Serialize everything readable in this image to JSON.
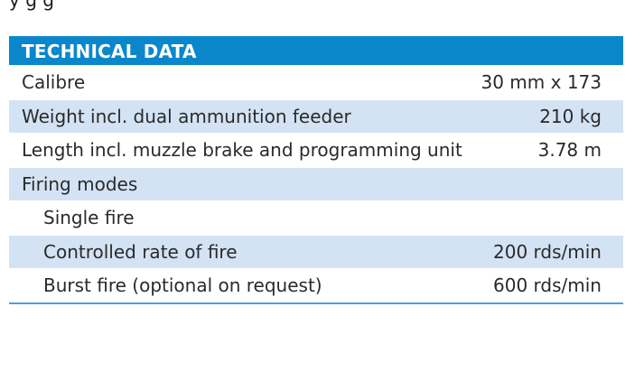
{
  "top_text": "y                   g    g",
  "table": {
    "header": "TECHNICAL DATA",
    "rows": [
      {
        "label": "Calibre",
        "value": "30 mm x 173"
      },
      {
        "label": "Weight incl. dual ammunition feeder",
        "value": "210 kg"
      },
      {
        "label": "Length incl. muzzle brake and programming unit",
        "value": "3.78 m"
      },
      {
        "label": "Firing modes",
        "value": ""
      },
      {
        "label": "Single fire",
        "value": ""
      },
      {
        "label": "Controlled rate of fire",
        "value": "200 rds/min"
      },
      {
        "label": "Burst fire (optional on request)",
        "value": "600 rds/min"
      }
    ]
  },
  "colors": {
    "header_bg": "#0a87cb",
    "shaded_row": "#d3e3f4",
    "rule": "#4f9fd8"
  }
}
